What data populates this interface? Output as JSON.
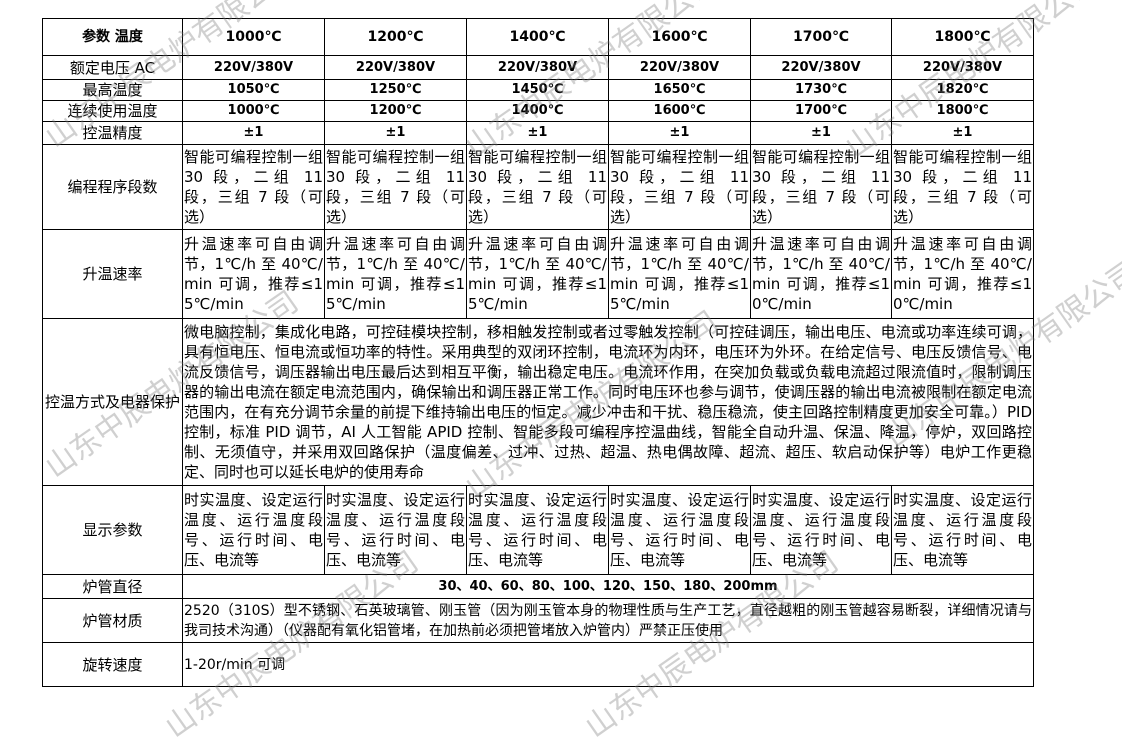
{
  "watermark": "山东中辰电炉有限公司",
  "header": {
    "label": "参数 温度",
    "temps": [
      "1000℃",
      "1200℃",
      "1400℃",
      "1600℃",
      "1700℃",
      "1800℃"
    ]
  },
  "rows": {
    "voltage": {
      "label": "额定电压 AC",
      "values": [
        "220V/380V",
        "220V/380V",
        "220V/380V",
        "220V/380V",
        "220V/380V",
        "220V/380V"
      ]
    },
    "max_temp": {
      "label": "最高温度",
      "values": [
        "1050℃",
        "1250℃",
        "1450℃",
        "1650℃",
        "1730℃",
        "1820℃"
      ]
    },
    "cont_temp": {
      "label": "连续使用温度",
      "values": [
        "1000℃",
        "1200℃",
        "1400℃",
        "1600℃",
        "1700℃",
        "1800℃"
      ]
    },
    "accuracy": {
      "label": "控温精度",
      "values": [
        "±1",
        "±1",
        "±1",
        "±1",
        "±1",
        "±1"
      ]
    },
    "program": {
      "label": "编程程序段数",
      "values": [
        "智能可编程控制一组 30 段，二组 11 段，三组 7 段（可选）",
        "智能可编程控制一组 30 段，二组 11 段，三组 7 段（可选）",
        "智能可编程控制一组 30 段，二组 11 段，三组 7 段（可选）",
        "智能可编程控制一组 30 段，二组 11 段，三组 7 段（可选）",
        "智能可编程控制一组 30 段，二组 11 段，三组 7 段（可选）",
        "智能可编程控制一组 30 段，二组 11 段，三组 7 段（可选）"
      ]
    },
    "rate": {
      "label": "升温速率",
      "values": [
        "升温速率可自由调节，1℃/h 至 40℃/min 可调，推荐≤15℃/min",
        "升温速率可自由调节，1℃/h 至 40℃/min 可调，推荐≤15℃/min",
        "升温速率可自由调节，1℃/h 至 40℃/min 可调，推荐≤15℃/min",
        "升温速率可自由调节，1℃/h 至 40℃/min 可调，推荐≤15℃/min",
        "升温速率可自由调节，1℃/h 至 40℃/min 可调，推荐≤10℃/min",
        "升温速率可自由调节，1℃/h 至 40℃/min 可调，推荐≤10℃/min"
      ]
    },
    "control": {
      "label": "控温方式及电器保护",
      "value": "微电脑控制，集成化电路，可控硅模块控制，移相触发控制或者过零触发控制（可控硅调压，输出电压、电流或功率连续可调，具有恒电压、恒电流或恒功率的特性。采用典型的双闭环控制，电流环为内环，电压环为外环。在给定信号、电压反馈信号、电流反馈信号，调压器输出电压最后达到相互平衡，输出稳定电压。电流环作用，在突加负载或负载电流超过限流值时，限制调压器的输出电流在额定电流范围内，确保输出和调压器正常工作。同时电压环也参与调节，使调压器的输出电流被限制在额定电流范围内，在有充分调节余量的前提下维持输出电压的恒定。减少冲击和干扰、稳压稳流，使主回路控制精度更加安全可靠。）PID 控制，标准 PID 调节，AI 人工智能 APID 控制、智能多段可编程序控温曲线，智能全自动升温、保温、降温，停炉，双回路控制、无须值守，并采用双回路保护（温度偏差、过冲、过热、超温、热电偶故障、超流、超压、软启动保护等）电炉工作更稳定、同时也可以延长电炉的使用寿命"
    },
    "display": {
      "label": "显示参数",
      "values": [
        "时实温度、设定运行温度、运行温度段号、运行时间、电压、电流等",
        "时实温度、设定运行温度、运行温度段号、运行时间、电压、电流等",
        "时实温度、设定运行温度、运行温度段号、运行时间、电压、电流等",
        "时实温度、设定运行温度、运行温度段号、运行时间、电压、电流等",
        "时实温度、设定运行温度、运行温度段号、运行时间、电压、电流等",
        "时实温度、设定运行温度、运行温度段号、运行时间、电压、电流等"
      ]
    },
    "diameter": {
      "label": "炉管直径",
      "value": "30、40、60、80、100、120、150、180、200mm"
    },
    "material": {
      "label": "炉管材质",
      "value": "2520（310S）型不锈钢、石英玻璃管、刚玉管（因为刚玉管本身的物理性质与生产工艺，直径越粗的刚玉管越容易断裂，详细情况请与我司技术沟通）（仪器配有氧化铝管堵，在加热前必须把管堵放入炉管内）严禁正压使用"
    },
    "rotation": {
      "label": "旋转速度",
      "value": "1-20r/min 可调"
    }
  }
}
